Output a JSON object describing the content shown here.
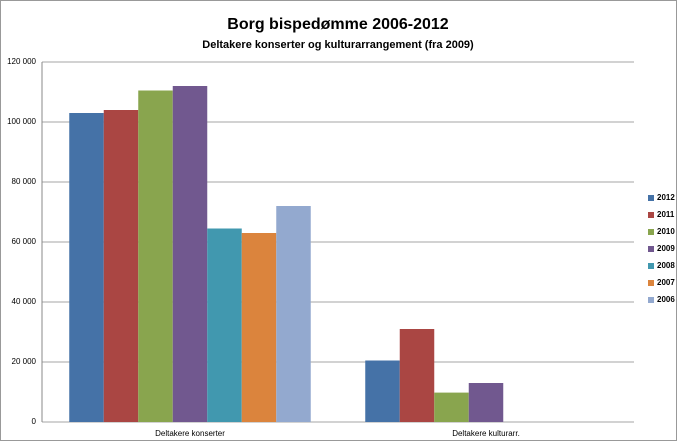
{
  "chart_data": {
    "type": "bar",
    "title": "Borg bispedømme 2006-2012",
    "subtitle": "Deltakere konserter og kulturarrangement  (fra 2009)",
    "categories": [
      "Deltakere konserter",
      "Deltakere kulturarr."
    ],
    "series": [
      {
        "name": "2012",
        "color": "#4572a7",
        "values": [
          103000,
          20500
        ]
      },
      {
        "name": "2011",
        "color": "#aa4643",
        "values": [
          104000,
          31000
        ]
      },
      {
        "name": "2010",
        "color": "#89a54e",
        "values": [
          110500,
          9800
        ]
      },
      {
        "name": "2009",
        "color": "#71588f",
        "values": [
          112000,
          13000
        ]
      },
      {
        "name": "2008",
        "color": "#4198af",
        "values": [
          64500,
          null
        ]
      },
      {
        "name": "2007",
        "color": "#db843d",
        "values": [
          63000,
          null
        ]
      },
      {
        "name": "2006",
        "color": "#93a9cf",
        "values": [
          72000,
          null
        ]
      }
    ],
    "ylim": [
      0,
      120000
    ],
    "yticks": [
      0,
      {
        "value": 20000,
        "label": "20 000"
      },
      {
        "value": 40000,
        "label": "40 000"
      },
      {
        "value": 60000,
        "label": "60 000"
      },
      {
        "value": 80000,
        "label": "80 000"
      },
      {
        "value": 100000,
        "label": "100 000"
      },
      {
        "value": 120000,
        "label": "120 000"
      }
    ],
    "grid": true,
    "legend": "right"
  }
}
